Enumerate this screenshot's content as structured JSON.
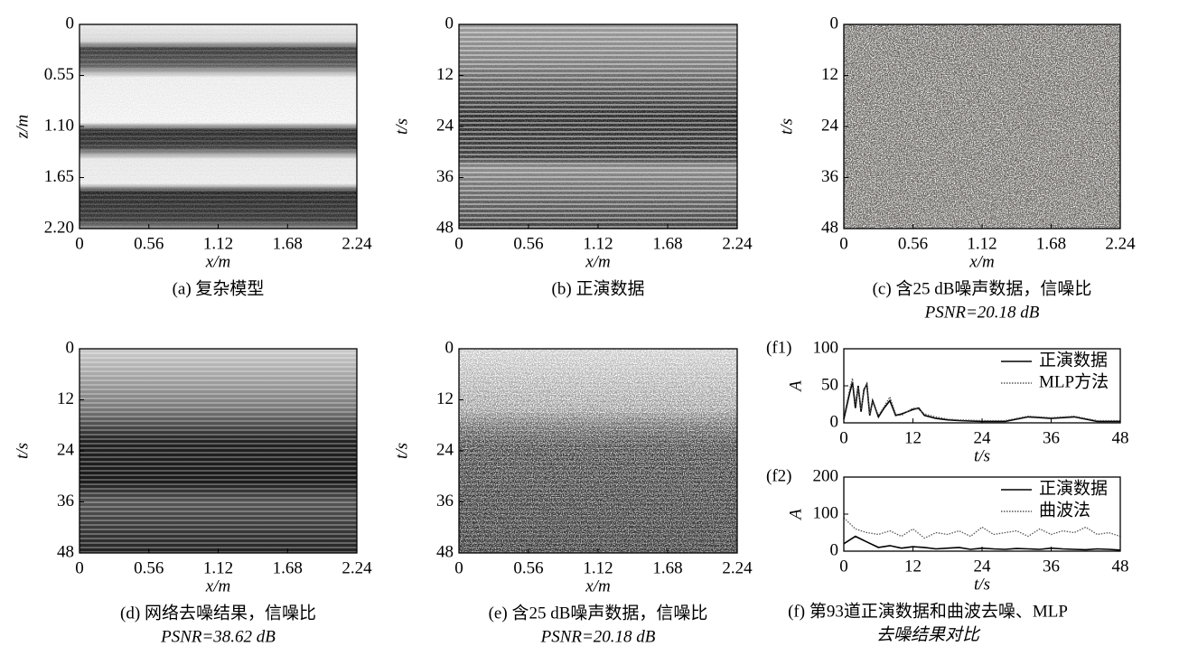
{
  "chart_data": [
    {
      "type": "image",
      "xlabel": "x/m",
      "ylabel": "z/m",
      "xlim": [
        0,
        2.24
      ],
      "xticks": [
        0,
        0.56,
        1.12,
        1.68,
        2.24
      ],
      "ylim": [
        2.2,
        0
      ],
      "yticks": [
        0,
        0.55,
        {
          "value": 1.1,
          "label": "1.10"
        },
        1.65,
        {
          "value": 2.2,
          "label": "2.20"
        }
      ],
      "caption": [
        "(a) 复杂模型"
      ]
    },
    {
      "type": "image",
      "xlabel": "x/m",
      "ylabel": "t/s",
      "xlim": [
        0,
        2.24
      ],
      "xticks": [
        0,
        0.56,
        1.12,
        1.68,
        2.24
      ],
      "ylim": [
        48,
        0
      ],
      "yticks": [
        0,
        12,
        24,
        36,
        48
      ],
      "caption": [
        "(b) 正演数据"
      ]
    },
    {
      "type": "image",
      "xlabel": "x/m",
      "ylabel": "t/s",
      "xlim": [
        0,
        2.24
      ],
      "xticks": [
        0,
        0.56,
        1.12,
        1.68,
        2.24
      ],
      "ylim": [
        48,
        0
      ],
      "yticks": [
        0,
        12,
        24,
        36,
        48
      ],
      "caption": [
        "(c) 含25 dB噪声数据，信噪比",
        "PSNR=20.18 dB"
      ]
    },
    {
      "type": "image",
      "xlabel": "x/m",
      "ylabel": "t/s",
      "xlim": [
        0,
        2.24
      ],
      "xticks": [
        0,
        0.56,
        1.12,
        1.68,
        2.24
      ],
      "ylim": [
        48,
        0
      ],
      "yticks": [
        0,
        12,
        24,
        36,
        48
      ],
      "caption": [
        "(d) 网络去噪结果，信噪比",
        "PSNR=38.62 dB"
      ]
    },
    {
      "type": "image",
      "xlabel": "x/m",
      "ylabel": "t/s",
      "xlim": [
        0,
        2.24
      ],
      "xticks": [
        0,
        0.56,
        1.12,
        1.68,
        2.24
      ],
      "ylim": [
        48,
        0
      ],
      "yticks": [
        0,
        12,
        24,
        36,
        48
      ],
      "caption": [
        "(e) 含25 dB噪声数据，信噪比",
        "PSNR=20.18 dB"
      ]
    },
    {
      "type": "line",
      "panel_label": "(f1)",
      "xlabel": "t/s",
      "ylabel": "A",
      "xlim": [
        0,
        48
      ],
      "xticks": [
        0,
        12,
        24,
        36,
        48
      ],
      "ylim": [
        0,
        100
      ],
      "yticks": [
        0,
        50,
        100
      ],
      "legend": "upper right",
      "x": [
        0,
        1,
        1.5,
        2,
        2.5,
        3,
        3.5,
        4,
        4.5,
        5,
        6,
        7,
        8,
        9,
        10,
        12,
        13,
        14,
        16,
        18,
        20,
        24,
        28,
        32,
        36,
        40,
        44,
        48
      ],
      "series": [
        {
          "name": "正演数据",
          "color": "#000000",
          "linestyle": "solid",
          "values": [
            5,
            40,
            55,
            20,
            50,
            15,
            45,
            52,
            10,
            30,
            8,
            20,
            30,
            10,
            12,
            18,
            20,
            10,
            6,
            4,
            3,
            2,
            2,
            8,
            6,
            8,
            2,
            2
          ]
        },
        {
          "name": "MLP方法",
          "color": "#555555",
          "linestyle": "dotted",
          "values": [
            8,
            45,
            60,
            25,
            48,
            18,
            42,
            55,
            12,
            28,
            10,
            22,
            35,
            12,
            10,
            20,
            18,
            12,
            8,
            5,
            4,
            3,
            3,
            9,
            7,
            9,
            3,
            3
          ]
        }
      ]
    },
    {
      "type": "line",
      "panel_label": "(f2)",
      "xlabel": "t/s",
      "ylabel": "A",
      "xlim": [
        0,
        48
      ],
      "xticks": [
        0,
        12,
        24,
        36,
        48
      ],
      "ylim": [
        0,
        200
      ],
      "yticks": [
        0,
        100,
        200
      ],
      "legend": "upper right",
      "x": [
        0,
        2,
        4,
        6,
        8,
        10,
        12,
        14,
        16,
        18,
        20,
        22,
        24,
        26,
        28,
        30,
        32,
        34,
        36,
        38,
        40,
        42,
        44,
        46,
        48
      ],
      "series": [
        {
          "name": "正演数据",
          "color": "#000000",
          "linestyle": "solid",
          "values": [
            20,
            40,
            25,
            10,
            15,
            8,
            12,
            10,
            6,
            8,
            10,
            5,
            8,
            6,
            5,
            7,
            6,
            5,
            8,
            6,
            5,
            4,
            6,
            5,
            3
          ]
        },
        {
          "name": "曲波法",
          "color": "#555555",
          "linestyle": "dotted",
          "values": [
            90,
            60,
            50,
            45,
            55,
            40,
            60,
            35,
            50,
            45,
            55,
            40,
            65,
            45,
            50,
            55,
            40,
            60,
            45,
            55,
            50,
            65,
            45,
            50,
            40
          ]
        }
      ],
      "caption": [
        "(f) 第93道正演数据和曲波去噪、MLP",
        "去噪结果对比"
      ]
    }
  ]
}
